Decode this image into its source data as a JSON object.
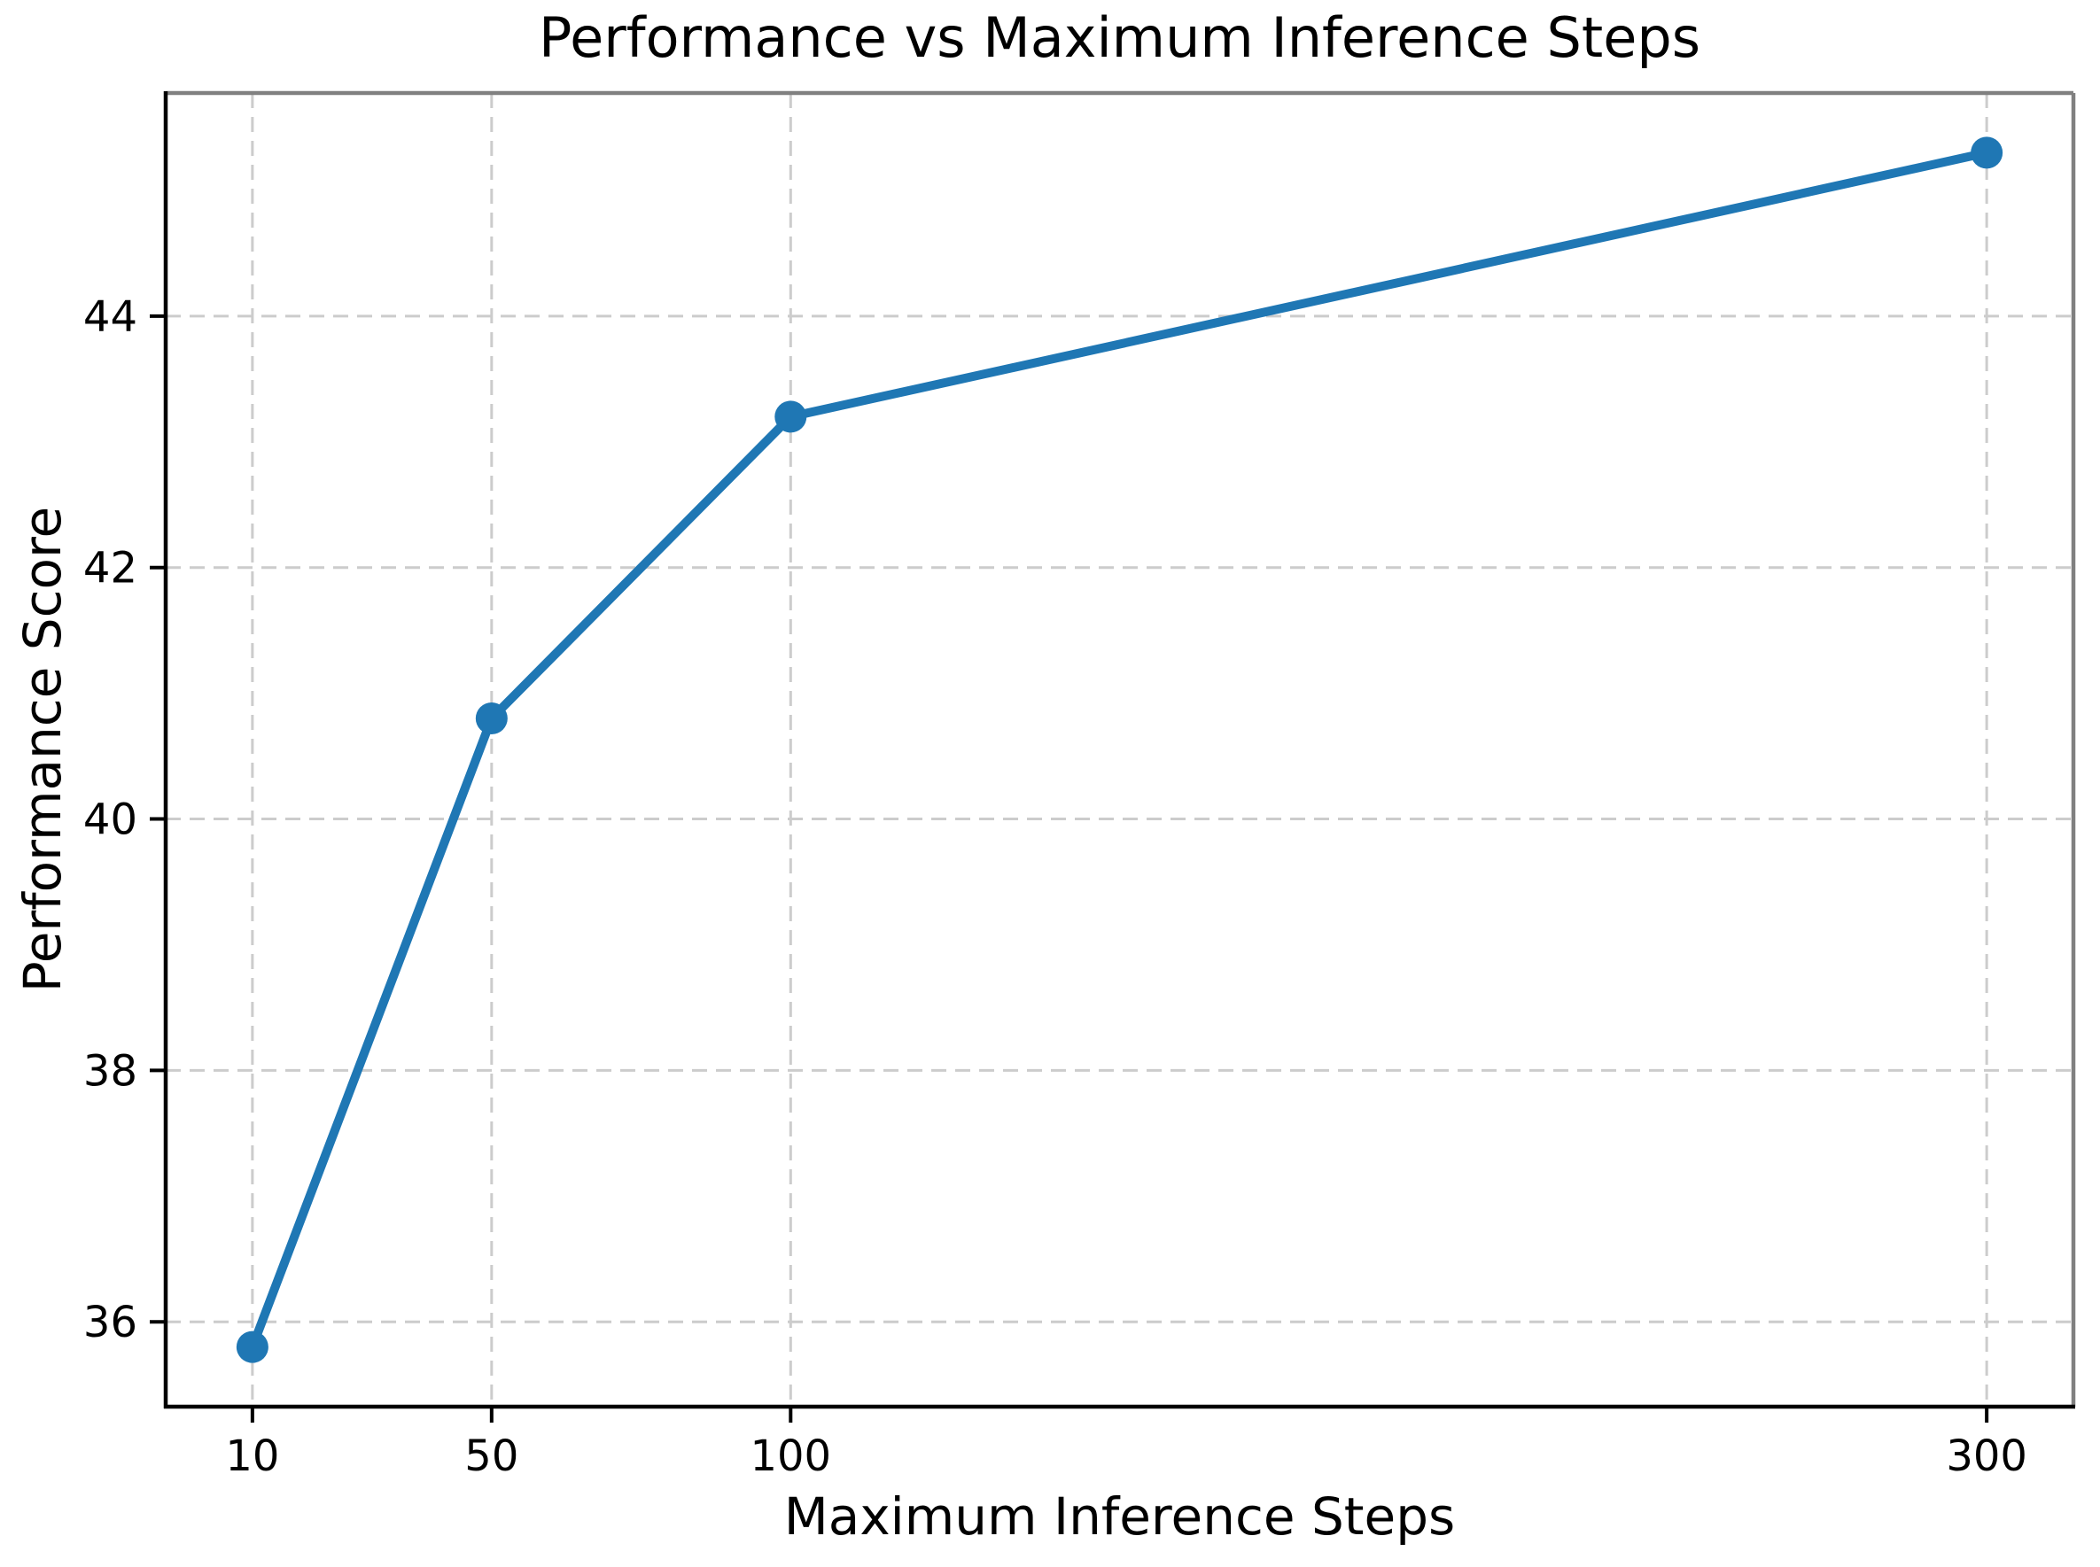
{
  "chart_data": {
    "type": "line",
    "title": "Performance vs Maximum Inference Steps",
    "xlabel": "Maximum Inference Steps",
    "ylabel": "Performance Score",
    "x": [
      10,
      50,
      100,
      300
    ],
    "series": [
      {
        "name": "Performance Score",
        "values": [
          35.8,
          40.8,
          43.2,
          45.3
        ]
      }
    ],
    "xticks": [
      10,
      50,
      100,
      300
    ],
    "yticks": [
      36,
      38,
      40,
      42,
      44
    ],
    "xlim": [
      -4.5,
      314.5
    ],
    "ylim": [
      35.325,
      45.775
    ],
    "grid": true,
    "grid_style": "dashed",
    "legend": "none",
    "colors": {
      "line": "#1f77b4",
      "marker": "#1f77b4",
      "grid": "#cccccc",
      "spine_left_bottom": "#000000",
      "spine_top_right": "#808080",
      "tick": "#000000",
      "background": "#ffffff"
    }
  }
}
